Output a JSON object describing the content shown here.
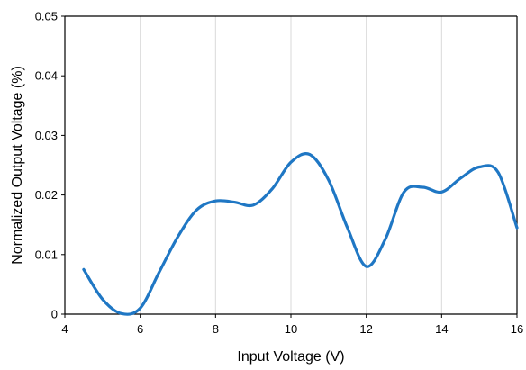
{
  "chart_data": {
    "type": "line",
    "title": "",
    "xlabel": "Input Voltage (V)",
    "ylabel": "Normalized Output Voltage (%)",
    "xlim": [
      4,
      16
    ],
    "ylim": [
      0,
      0.05
    ],
    "x_ticks": [
      "4",
      "6",
      "8",
      "10",
      "12",
      "14",
      "16"
    ],
    "y_ticks": [
      "0",
      "0.01",
      "0.02",
      "0.03",
      "0.04",
      "0.05"
    ],
    "grid": "vertical",
    "legend": "none",
    "series": [
      {
        "color": "#1f77c4",
        "x": [
          4.5,
          5.0,
          5.5,
          6.0,
          6.5,
          7.0,
          7.5,
          8.0,
          8.5,
          9.0,
          9.5,
          10.0,
          10.5,
          11.0,
          11.5,
          12.0,
          12.5,
          13.0,
          13.5,
          14.0,
          14.5,
          15.0,
          15.5,
          16.0
        ],
        "values": [
          0.0075,
          0.0025,
          0.0001,
          0.001,
          0.007,
          0.013,
          0.0175,
          0.019,
          0.0188,
          0.0183,
          0.021,
          0.0255,
          0.0268,
          0.0225,
          0.0145,
          0.008,
          0.0125,
          0.0205,
          0.0213,
          0.0205,
          0.0228,
          0.0247,
          0.0238,
          0.0145
        ]
      }
    ]
  }
}
